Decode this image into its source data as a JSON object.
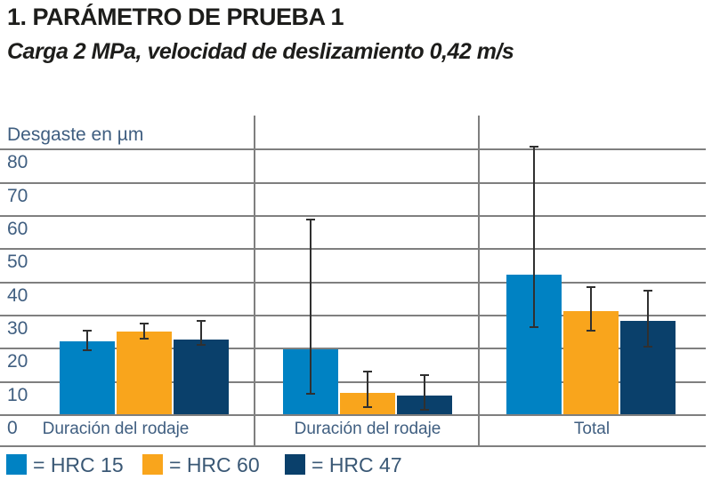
{
  "header": {
    "title": "1. PARÁMETRO DE PRUEBA 1",
    "subtitle": "Carga 2 MPa, velocidad de deslizamiento 0,42 m/s"
  },
  "chart_data": {
    "type": "bar",
    "title": "1. PARÁMETRO DE PRUEBA 1",
    "subtitle": "Carga 2 MPa, velocidad de deslizamiento 0,42 m/s",
    "ylabel": "Desgaste en µm",
    "ylim": [
      0,
      90
    ],
    "y_ticks": [
      0,
      10,
      20,
      30,
      40,
      50,
      60,
      70,
      80
    ],
    "grid": true,
    "legend_position": "bottom",
    "categories": [
      "Duración del rodaje",
      "Duración del rodaje",
      "Total"
    ],
    "series": [
      {
        "name": "HRC 15",
        "color": "#0082C3",
        "values": [
          22,
          19.5,
          42
        ],
        "error_low": [
          19,
          6,
          26
        ],
        "error_high": [
          25.5,
          59,
          81
        ]
      },
      {
        "name": "HRC 60",
        "color": "#F9A51C",
        "values": [
          25,
          6.5,
          31
        ],
        "error_low": [
          22.5,
          2,
          25
        ],
        "error_high": [
          27.5,
          13,
          38.5
        ]
      },
      {
        "name": "HRC 47",
        "color": "#0A406B",
        "values": [
          22.5,
          5.5,
          28
        ],
        "error_low": [
          20.5,
          1,
          20
        ],
        "error_high": [
          28.5,
          12,
          37.5
        ]
      }
    ],
    "legend": [
      {
        "label": "= HRC 15",
        "color": "#0082C3"
      },
      {
        "label": "= HRC 60",
        "color": "#F9A51C"
      },
      {
        "label": "= HRC 47",
        "color": "#0A406B"
      }
    ]
  },
  "colors": {
    "text_blue_gray": "#3f5e80",
    "grid": "#7f7f7f",
    "title_text": "#1d1d1b",
    "error_bar": "#303030"
  }
}
